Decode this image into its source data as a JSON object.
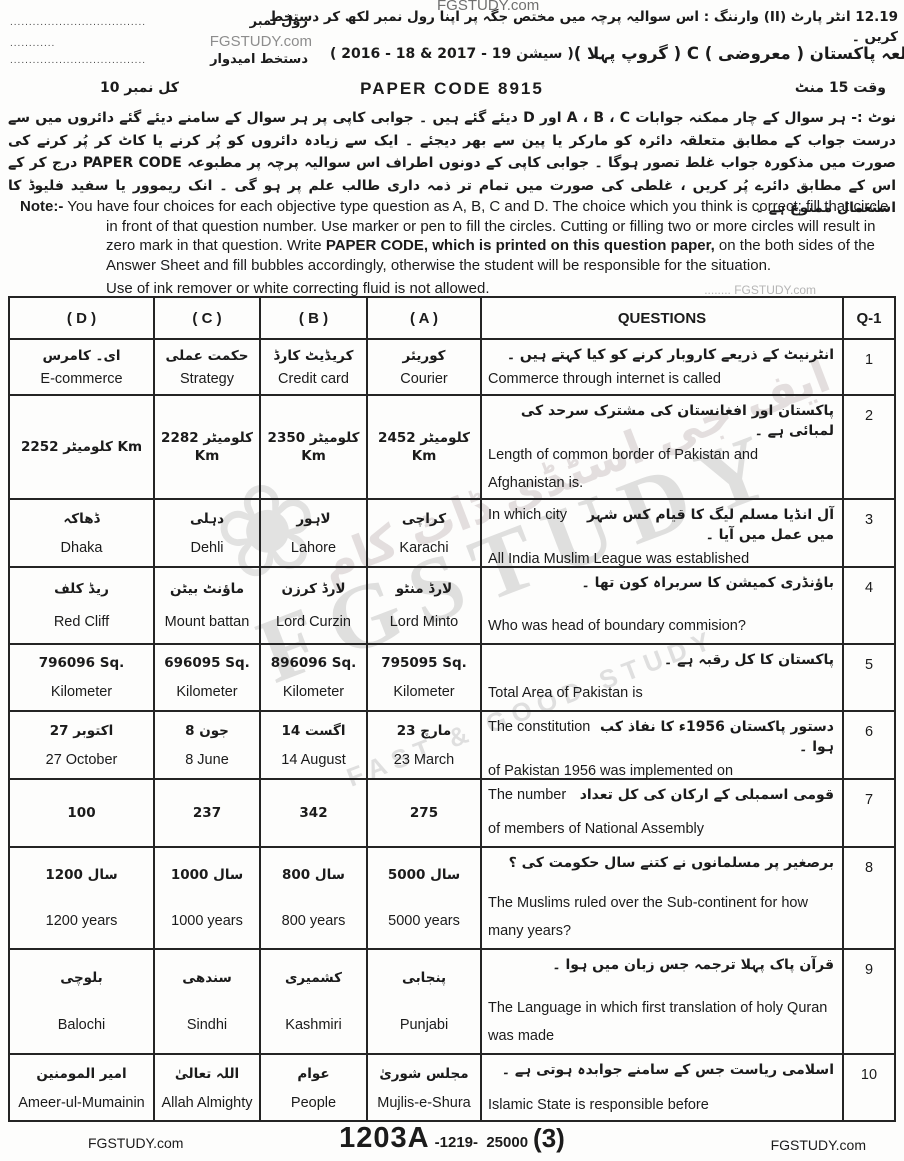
{
  "header": {
    "site_watermark": "FGSTUDY.com",
    "top_line": "12.19 انٹر پارٹ (II)    وارننگ : اس سوالیہ پرچہ میں مختص جگہ پر اپنا رول نمبر لکھ کر دستخط کریں ۔",
    "roll_no_label": "رول نمبر",
    "roll_no_dots": "....................................",
    "roll_no_dots2": "............",
    "site_name": "FGSTUDY.com",
    "candidate_sign_label": "دستخط امیدوار",
    "candidate_sign_dots": "....................................",
    "session": "( 2016 - 18  &  2017 - 19 سیشن )",
    "subject_title": "مطالعہ پاکستان ( معروضی ) C ( گروپ پہلا )",
    "total_marks": "کل نمبر 10",
    "paper_code_label": "PAPER CODE  8915",
    "time_allowed": "وقت 15 منٹ"
  },
  "note_ur": {
    "label": "نوٹ :-",
    "text": "ہر سوال کے چار ممکنہ جوابات A ، B ، C اور D دیئے گئے ہیں ۔ جوابی کاپی پر ہر سوال کے سامنے دیئے گئے دائروں میں سے درست جواب کے مطابق متعلقہ دائرہ کو مارکر یا پین سے بھر دیجئے ۔ ایک سے زیادہ دائروں کو پُر کرنے یا کاٹ کر پُر کرنے کی صورت میں مذکورہ جواب غلط تصور ہوگا ۔ جوابی کاپی کے دونوں اطراف اس سوالیہ پرچہ پر مطبوعہ PAPER CODE درج کر کے اس کے مطابق دائرے پُر کریں ، غلطی کی صورت میں تمام تر ذمہ داری طالب علم پر ہو گی ۔ انک ریموور یا سفید فلیوڈ کا استعمال ممنوع ہے ۔"
  },
  "note_en": {
    "label": "Note:-",
    "part1": " You have four choices for each objective type question as A, B, C and D.  The choice which you think is correct; fill that circle in front of that question number.  Use marker or pen to fill the circles. Cutting or filling two or more circles will result in zero mark in that question.   Write ",
    "bold": "PAPER CODE, which is printed on this question paper,",
    "part2": " on the  both sides of  the  Answer  Sheet and fill bubbles accordingly,  otherwise  the student  will be responsible for  the situation.",
    "last_line": "Use  of ink remover or white correcting  fluid is not allowed.",
    "watermark": "........ FGSTUDY.com"
  },
  "table": {
    "headers": {
      "d": "( D )",
      "c": "( C )",
      "b": "( B )",
      "a": "( A )",
      "questions": "QUESTIONS",
      "qnum": "Q-1"
    },
    "rows": [
      {
        "num": "1",
        "d1": "ای۔ کامرس",
        "d2": "E-commerce",
        "c1": "حکمت عملی",
        "c2": "Strategy",
        "b1": "کریڈیٹ کارڈ",
        "b2": "Credit card",
        "a1": "کوریئر",
        "a2": "Courier",
        "qi": "",
        "qu": "انٹرنیٹ کے ذریعے کاروبار کرنے کو کیا کہتے ہیں ۔",
        "qe": "Commerce through internet is called"
      },
      {
        "num": "2",
        "d1": "کلومیٹر 2252 Km",
        "d2": "",
        "c1": "کلومیٹر 2282 Km",
        "c2": "",
        "b1": "کلومیٹر 2350 Km",
        "b2": "",
        "a1": "کلومیٹر 2452 Km",
        "a2": "",
        "qi": "",
        "qu": "پاکستان اور افغانستان کی مشترک سرحد کی لمبائی ہے ۔",
        "qe": "Length of common border of Pakistan and Afghanistan is."
      },
      {
        "num": "3",
        "d1": "ڈھاکہ",
        "d2": "Dhaka",
        "c1": "دہلی",
        "c2": "Dehli",
        "b1": "لاہور",
        "b2": "Lahore",
        "a1": "کراچی",
        "a2": "Karachi",
        "qi": "In which city",
        "qu": "آل انڈیا مسلم لیگ کا قیام کس شہر میں عمل میں آیا ۔",
        "qe": "All India Muslim League was established"
      },
      {
        "num": "4",
        "d1": "ریڈ کلف",
        "d2": "Red Cliff",
        "c1": "ماؤنٹ بیٹن",
        "c2": "Mount battan",
        "b1": "لارڈ کرزن",
        "b2": "Lord Curzin",
        "a1": "لارڈ منٹو",
        "a2": "Lord Minto",
        "qi": "",
        "qu": "باؤنڈری کمیشن کا سربراہ کون تھا ۔",
        "qe": "Who was head of boundary commision?"
      },
      {
        "num": "5",
        "d1": "796096 Sq.",
        "d2": "Kilometer",
        "c1": "696095 Sq.",
        "c2": "Kilometer",
        "b1": "896096 Sq.",
        "b2": "Kilometer",
        "a1": "795095 Sq.",
        "a2": "Kilometer",
        "qi": "",
        "qu": "پاکستان کا کل رقبہ ہے ۔",
        "qe": "Total Area of Pakistan is"
      },
      {
        "num": "6",
        "d1": "27 اکتوبر",
        "d2": "27 October",
        "c1": "8 جون",
        "c2": "8 June",
        "b1": "14 اگست",
        "b2": "14 August",
        "a1": "23 مارچ",
        "a2": "23 March",
        "qi": "The constitution",
        "qu": "دستور پاکستان 1956ء کا نفاذ کب ہوا ۔",
        "qe": "of Pakistan 1956 was implemented on"
      },
      {
        "num": "7",
        "d1": "100",
        "d2": "",
        "c1": "237",
        "c2": "",
        "b1": "342",
        "b2": "",
        "a1": "275",
        "a2": "",
        "qi": "The number",
        "qu": "قومی اسمبلی کے ارکان کی کل تعداد",
        "qe": "of members of National Assembly"
      },
      {
        "num": "8",
        "d1": "سال 1200",
        "d2": "1200 years",
        "c1": "سال 1000",
        "c2": "1000 years",
        "b1": "سال 800",
        "b2": "800 years",
        "a1": "سال 5000",
        "a2": "5000 years",
        "qi": "",
        "qu": "برصغیر پر مسلمانوں نے کتنے سال حکومت کی ؟",
        "qe": "The Muslims ruled over the Sub-continent for how many years?"
      },
      {
        "num": "9",
        "d1": "بلوچی",
        "d2": "Balochi",
        "c1": "سندھی",
        "c2": "Sindhi",
        "b1": "کشمیری",
        "b2": "Kashmiri",
        "a1": "پنجابی",
        "a2": "Punjabi",
        "qi": "",
        "qu": "قرآن پاک پہلا ترجمہ جس زبان میں ہوا ۔",
        "qe": "The Language in which first translation of holy Quran was made"
      },
      {
        "num": "10",
        "d1": "امیر المومنین",
        "d2": "Ameer-ul-Mumainin",
        "c1": "اللہ تعالیٰ",
        "c2": "Allah Almighty",
        "b1": "عوام",
        "b2": "People",
        "a1": "مجلس شوریٰ",
        "a2": "Mujlis-e-Shura",
        "qi": "",
        "qu": "اسلامی ریاست جس کے سامنے جوابدہ ہوتی ہے ۔",
        "qe": "Islamic State is responsible before"
      }
    ]
  },
  "watermarks": {
    "flower": "❀",
    "big_text": "FGSTUDY",
    "tagline": "FAST & GOOD STUDY",
    "urdu_diagonal": "ایف جی اسٹڈی ڈاٹ کام"
  },
  "footer": {
    "left_site": "FGSTUDY.com",
    "code_big": "1203A",
    "code_small": "-1219-  25000",
    "page_no": "(3)",
    "right_site": "FGSTUDY.com"
  }
}
